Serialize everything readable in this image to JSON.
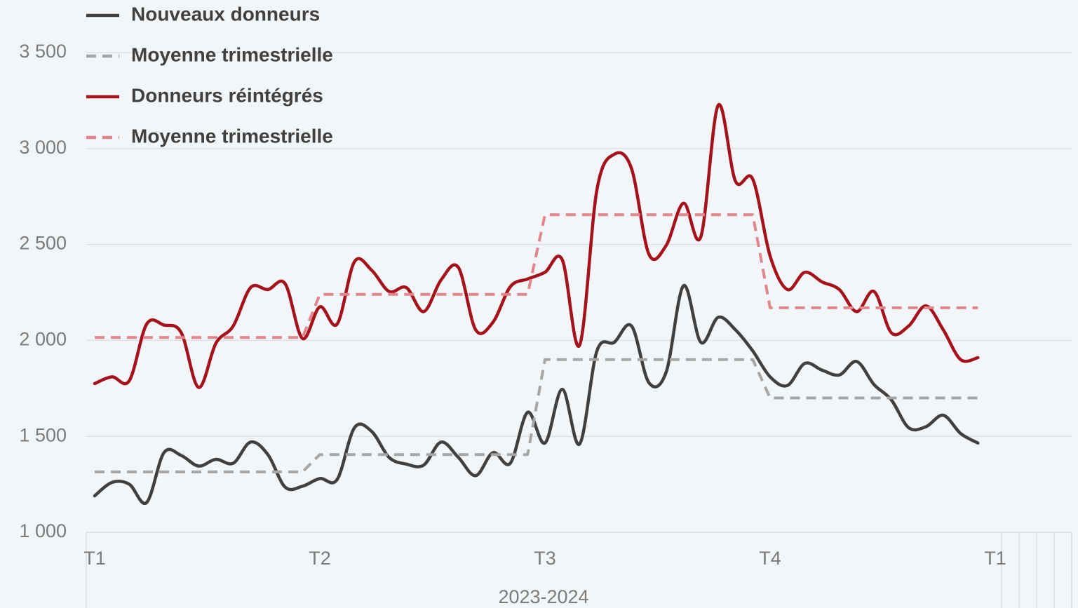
{
  "chart_data": {
    "type": "line",
    "x": [
      0,
      1,
      2,
      3,
      4,
      5,
      6,
      7,
      8,
      9,
      10,
      11,
      12,
      13,
      14,
      15,
      16,
      17,
      18,
      19,
      20,
      21,
      22,
      23,
      24,
      25,
      26,
      27,
      28,
      29,
      30,
      31,
      32,
      33,
      34,
      35,
      36,
      37,
      38,
      39,
      40,
      41,
      42,
      43,
      44,
      45,
      46,
      47,
      48,
      49,
      50,
      51
    ],
    "xlim": [
      0,
      52
    ],
    "xticks": [
      {
        "value": 0,
        "label": "T1"
      },
      {
        "value": 13,
        "label": "T2"
      },
      {
        "value": 26,
        "label": "T3"
      },
      {
        "value": 39,
        "label": "T4"
      },
      {
        "value": 52,
        "label": "T1"
      }
    ],
    "x_group_label": "2023-2024",
    "ylim": [
      1000,
      3500
    ],
    "yticks": [
      {
        "value": 1000,
        "label": "1 000"
      },
      {
        "value": 1500,
        "label": "1 500"
      },
      {
        "value": 2000,
        "label": "2 000"
      },
      {
        "value": 2500,
        "label": "2 500"
      },
      {
        "value": 3000,
        "label": "3 000"
      },
      {
        "value": 3500,
        "label": "3 500"
      }
    ],
    "grid": true,
    "legend": "top-left",
    "series": [
      {
        "name": "Nouveaux donneurs",
        "color": "#404040",
        "style": "solid",
        "smooth": true,
        "values": [
          1190,
          1260,
          1250,
          1155,
          1415,
          1400,
          1345,
          1380,
          1360,
          1470,
          1405,
          1235,
          1240,
          1280,
          1275,
          1545,
          1525,
          1390,
          1355,
          1350,
          1470,
          1390,
          1295,
          1415,
          1360,
          1625,
          1465,
          1745,
          1460,
          1945,
          1990,
          2075,
          1780,
          1835,
          2285,
          1990,
          2120,
          2055,
          1945,
          1810,
          1765,
          1880,
          1845,
          1820,
          1890,
          1770,
          1690,
          1545,
          1550,
          1610,
          1515,
          1465
        ]
      },
      {
        "name": "Moyenne trimestrielle",
        "color": "#a6a6a6",
        "style": "dashed",
        "smooth": false,
        "values": [
          1315,
          1315,
          1315,
          1315,
          1315,
          1315,
          1315,
          1315,
          1315,
          1315,
          1315,
          1315,
          1315,
          1405,
          1405,
          1405,
          1405,
          1405,
          1405,
          1405,
          1405,
          1405,
          1405,
          1405,
          1405,
          1405,
          1900,
          1900,
          1900,
          1900,
          1900,
          1900,
          1900,
          1900,
          1900,
          1900,
          1900,
          1900,
          1900,
          1700,
          1700,
          1700,
          1700,
          1700,
          1700,
          1700,
          1700,
          1700,
          1700,
          1700,
          1700,
          1700
        ]
      },
      {
        "name": "Donneurs réintégrés",
        "color": "#a5121b",
        "style": "solid",
        "smooth": true,
        "values": [
          1775,
          1810,
          1790,
          2085,
          2080,
          2040,
          1755,
          1985,
          2075,
          2275,
          2265,
          2295,
          2010,
          2175,
          2085,
          2410,
          2365,
          2255,
          2275,
          2150,
          2315,
          2380,
          2055,
          2095,
          2280,
          2320,
          2355,
          2420,
          1975,
          2785,
          2970,
          2895,
          2450,
          2495,
          2715,
          2540,
          3225,
          2830,
          2840,
          2440,
          2265,
          2355,
          2305,
          2265,
          2150,
          2255,
          2040,
          2075,
          2180,
          2055,
          1900,
          1910
        ]
      },
      {
        "name": "Moyenne trimestrielle",
        "color": "#e0868c",
        "style": "dashed",
        "smooth": false,
        "values": [
          2015,
          2015,
          2015,
          2015,
          2015,
          2015,
          2015,
          2015,
          2015,
          2015,
          2015,
          2015,
          2015,
          2240,
          2240,
          2240,
          2240,
          2240,
          2240,
          2240,
          2240,
          2240,
          2240,
          2240,
          2240,
          2240,
          2655,
          2655,
          2655,
          2655,
          2655,
          2655,
          2655,
          2655,
          2655,
          2655,
          2655,
          2655,
          2655,
          2170,
          2170,
          2170,
          2170,
          2170,
          2170,
          2170,
          2170,
          2170,
          2170,
          2170,
          2170,
          2170
        ]
      }
    ]
  }
}
